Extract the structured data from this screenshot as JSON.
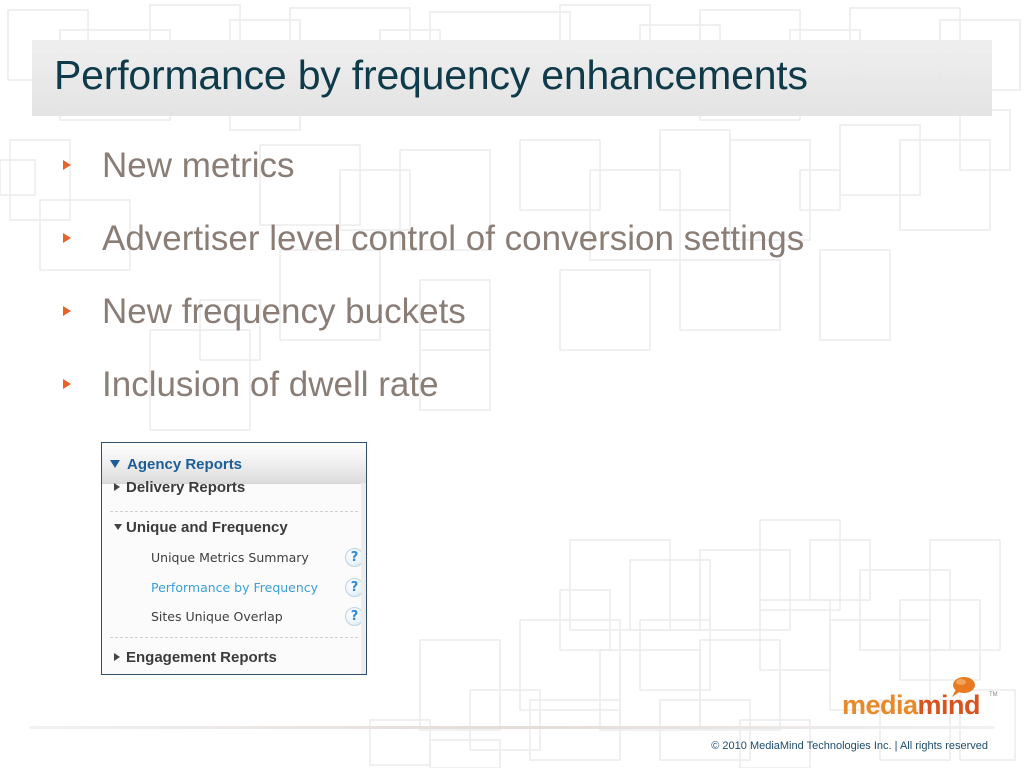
{
  "slide": {
    "title": "Performance by frequency enhancements",
    "bullets": [
      "New metrics",
      "Advertiser level control of conversion settings",
      "New frequency buckets",
      "Inclusion of dwell rate"
    ]
  },
  "panel": {
    "header": "Agency Reports",
    "groups": {
      "delivery": "Delivery Reports",
      "unique": "Unique and Frequency",
      "engagement": "Engagement Reports"
    },
    "items": [
      {
        "label": "Unique Metrics Summary",
        "help": "?"
      },
      {
        "label": "Performance by Frequency",
        "help": "?"
      },
      {
        "label": "Sites Unique Overlap",
        "help": "?"
      }
    ]
  },
  "logo": {
    "part1": "media",
    "part2": "mind",
    "trademark": "TM"
  },
  "footer": {
    "copyright": "© 2010 MediaMind Technologies Inc. | All rights reserved"
  },
  "colors": {
    "title": "#0e3a4a",
    "bullet_text": "#8a7d76",
    "bullet_marker": "#e8622c",
    "panel_link": "#1d5e99",
    "active_item": "#3aa0d6",
    "logo_orange": "#e88a2a",
    "logo_red": "#d9531e"
  }
}
